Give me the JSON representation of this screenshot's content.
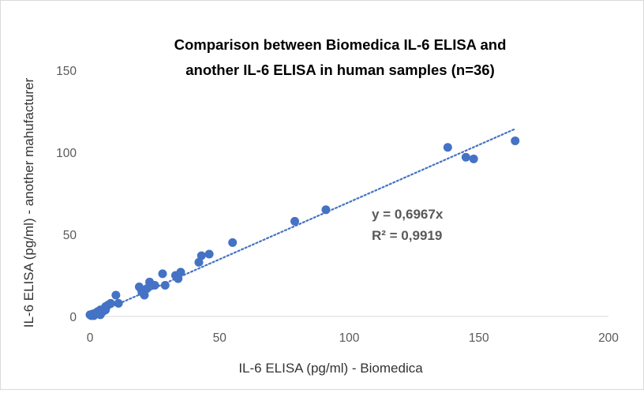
{
  "chart_data": {
    "type": "scatter",
    "title_lines": [
      "Comparison  between Biomedica  IL-6 ELISA and",
      "another IL-6 ELISA in human samples (n=36)"
    ],
    "xlabel": "IL-6 ELISA (pg/ml) - Biomedica",
    "ylabel": "IL-6  ELISA  (pg/ml) - another mahufacturer",
    "xlim": [
      0,
      200
    ],
    "ylim": [
      0,
      150
    ],
    "x_ticks": [
      0,
      50,
      100,
      150,
      200
    ],
    "y_ticks": [
      0,
      50,
      100,
      150
    ],
    "grid": false,
    "marker_color": "#4472c4",
    "trendline": {
      "type": "linear-through-origin",
      "slope": 0.6967,
      "x_range": [
        0,
        164
      ],
      "color": "#4472c4",
      "style": "dotted",
      "equation": "y = 0,6967x",
      "r_squared": "R² = 0,9919"
    },
    "points": [
      {
        "x": 0,
        "y": 1
      },
      {
        "x": 0.5,
        "y": 0.5
      },
      {
        "x": 1,
        "y": 1.5
      },
      {
        "x": 2,
        "y": 2
      },
      {
        "x": 3,
        "y": 3
      },
      {
        "x": 4,
        "y": 4
      },
      {
        "x": 4,
        "y": 1
      },
      {
        "x": 5,
        "y": 3
      },
      {
        "x": 6,
        "y": 4
      },
      {
        "x": 6,
        "y": 6
      },
      {
        "x": 7,
        "y": 7
      },
      {
        "x": 8,
        "y": 8
      },
      {
        "x": 10,
        "y": 13
      },
      {
        "x": 11,
        "y": 8
      },
      {
        "x": 19,
        "y": 18
      },
      {
        "x": 20,
        "y": 15
      },
      {
        "x": 21,
        "y": 13
      },
      {
        "x": 22,
        "y": 17
      },
      {
        "x": 23,
        "y": 21
      },
      {
        "x": 25,
        "y": 19
      },
      {
        "x": 28,
        "y": 26
      },
      {
        "x": 29,
        "y": 19
      },
      {
        "x": 33,
        "y": 25
      },
      {
        "x": 34,
        "y": 23
      },
      {
        "x": 35,
        "y": 27
      },
      {
        "x": 42,
        "y": 33
      },
      {
        "x": 43,
        "y": 37
      },
      {
        "x": 46,
        "y": 38
      },
      {
        "x": 55,
        "y": 45
      },
      {
        "x": 79,
        "y": 58
      },
      {
        "x": 91,
        "y": 65
      },
      {
        "x": 138,
        "y": 103
      },
      {
        "x": 145,
        "y": 97
      },
      {
        "x": 148,
        "y": 96
      },
      {
        "x": 164,
        "y": 107
      },
      {
        "x": 1.5,
        "y": 0.5
      }
    ]
  }
}
